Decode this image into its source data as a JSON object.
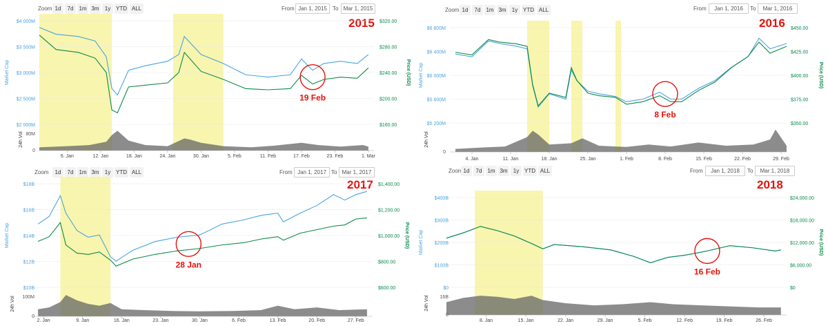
{
  "common": {
    "zoom_label": "Zoom",
    "zoom_buttons": [
      "1d",
      "7d",
      "1m",
      "3m",
      "1y",
      "YTD",
      "ALL"
    ],
    "from_label": "From",
    "to_label": "To",
    "market_cap_axis_title": "Market Cap",
    "price_axis_title": "Price (USD)",
    "volume_axis_title": "24h Vol",
    "colors": {
      "market_cap": "#4aa3df",
      "price": "#0a8a4a",
      "volume": "#666666",
      "highlight": "#f7f3a0",
      "annotation": "#e3120b"
    }
  },
  "chart_data": [
    {
      "type": "line",
      "year_label": "2015",
      "from_date": "Jan 1, 2015",
      "to_date": "Mar 1, 2015",
      "x_range": [
        "2015-01-01",
        "2015-03-02"
      ],
      "x_ticks": [
        "6. Jan",
        "12. Jan",
        "18. Jan",
        "24. Jan",
        "30. Jan",
        "5. Feb",
        "11. Feb",
        "17. Feb",
        "23. Feb",
        "1. Mar"
      ],
      "x_tick_dates": [
        "2015-01-06",
        "2015-01-12",
        "2015-01-18",
        "2015-01-24",
        "2015-01-30",
        "2015-02-05",
        "2015-02-11",
        "2015-02-17",
        "2015-02-23",
        "2015-03-01"
      ],
      "market_cap_ticks": [
        "$4 000M",
        "$3 500M",
        "$3 000M",
        "$2 500M",
        "$2 000M"
      ],
      "market_cap_range": [
        2000,
        4300
      ],
      "price_ticks": [
        "$320.00",
        "$280.00",
        "$240.00",
        "$200.00",
        "$160.00"
      ],
      "price_range": [
        160,
        340
      ],
      "volume_ticks": [
        "80M",
        "0"
      ],
      "volume_range": [
        0,
        100
      ],
      "highlight_ranges": [
        [
          "2015-01-01",
          "2015-01-14"
        ],
        [
          "2015-01-25",
          "2015-02-03"
        ]
      ],
      "annotation": {
        "label": "19 Feb",
        "date": "2015-02-19"
      },
      "series": [
        {
          "name": "Market Cap",
          "x": [
            "2015-01-01",
            "2015-01-04",
            "2015-01-08",
            "2015-01-11",
            "2015-01-13",
            "2015-01-14",
            "2015-01-15",
            "2015-01-17",
            "2015-01-20",
            "2015-01-24",
            "2015-01-26",
            "2015-01-27",
            "2015-01-30",
            "2015-02-03",
            "2015-02-07",
            "2015-02-11",
            "2015-02-15",
            "2015-02-17",
            "2015-02-19",
            "2015-02-21",
            "2015-02-24",
            "2015-02-27",
            "2015-03-01"
          ],
          "values": [
            4150,
            4000,
            3950,
            3850,
            3500,
            2800,
            2650,
            3200,
            3300,
            3400,
            3550,
            3950,
            3550,
            3350,
            3100,
            3050,
            3100,
            3450,
            3200,
            3350,
            3400,
            3350,
            3550
          ]
        },
        {
          "name": "Price",
          "x": [
            "2015-01-01",
            "2015-01-04",
            "2015-01-08",
            "2015-01-11",
            "2015-01-13",
            "2015-01-14",
            "2015-01-15",
            "2015-01-17",
            "2015-01-20",
            "2015-01-24",
            "2015-01-26",
            "2015-01-27",
            "2015-01-30",
            "2015-02-03",
            "2015-02-07",
            "2015-02-11",
            "2015-02-15",
            "2015-02-17",
            "2015-02-19",
            "2015-02-21",
            "2015-02-24",
            "2015-02-27",
            "2015-03-01"
          ],
          "values": [
            315,
            290,
            285,
            275,
            250,
            185,
            180,
            225,
            228,
            232,
            250,
            285,
            252,
            238,
            222,
            220,
            222,
            245,
            230,
            238,
            242,
            240,
            258
          ]
        },
        {
          "name": "24h Vol",
          "x": [
            "2015-01-01",
            "2015-01-06",
            "2015-01-10",
            "2015-01-13",
            "2015-01-14",
            "2015-01-15",
            "2015-01-17",
            "2015-01-20",
            "2015-01-24",
            "2015-01-27",
            "2015-01-28",
            "2015-01-30",
            "2015-02-03",
            "2015-02-08",
            "2015-02-12",
            "2015-02-17",
            "2015-02-20",
            "2015-02-24",
            "2015-02-28",
            "2015-03-01"
          ],
          "values": [
            15,
            20,
            25,
            40,
            70,
            90,
            45,
            25,
            20,
            55,
            50,
            35,
            20,
            15,
            22,
            35,
            25,
            18,
            25,
            18
          ]
        }
      ]
    },
    {
      "type": "line",
      "year_label": "2016",
      "from_date": "Jan 1, 2016",
      "to_date": "Mar 1, 2016",
      "x_range": [
        "2015-12-31",
        "2016-03-01"
      ],
      "x_ticks": [
        "4. Jan",
        "11. Jan",
        "18. Jan",
        "25. Jan",
        "1. Feb",
        "8. Feb",
        "15. Feb",
        "22. Feb",
        "29. Feb"
      ],
      "x_tick_dates": [
        "2016-01-04",
        "2016-01-11",
        "2016-01-18",
        "2016-01-25",
        "2016-02-01",
        "2016-02-08",
        "2016-02-15",
        "2016-02-22",
        "2016-02-29"
      ],
      "market_cap_ticks": [
        "$6 800M",
        "$6 400M",
        "$6 000M",
        "$5 600M",
        "$5 200M"
      ],
      "market_cap_range": [
        5200,
        7000
      ],
      "price_ticks": [
        "$450.00",
        "$425.00",
        "$400.00",
        "$375.00",
        "$350.00"
      ],
      "price_range": [
        350,
        462
      ],
      "volume_ticks": [
        "0"
      ],
      "volume_range": [
        0,
        100
      ],
      "highlight_ranges": [
        [
          "2016-01-14",
          "2016-01-18"
        ],
        [
          "2016-01-22",
          "2016-01-24"
        ],
        [
          "2016-01-30",
          "2016-01-31"
        ]
      ],
      "annotation": {
        "label": "8 Feb",
        "date": "2016-02-08"
      },
      "series": [
        {
          "name": "Market Cap",
          "x": [
            "2016-01-01",
            "2016-01-04",
            "2016-01-07",
            "2016-01-09",
            "2016-01-12",
            "2016-01-14",
            "2016-01-15",
            "2016-01-16",
            "2016-01-18",
            "2016-01-21",
            "2016-01-22",
            "2016-01-23",
            "2016-01-25",
            "2016-01-27",
            "2016-01-30",
            "2016-02-01",
            "2016-02-04",
            "2016-02-07",
            "2016-02-09",
            "2016-02-11",
            "2016-02-14",
            "2016-02-17",
            "2016-02-20",
            "2016-02-23",
            "2016-02-25",
            "2016-02-27",
            "2016-03-01"
          ],
          "values": [
            6500,
            6450,
            6750,
            6700,
            6650,
            6600,
            5900,
            5500,
            5750,
            5650,
            6200,
            6000,
            5800,
            5750,
            5700,
            5600,
            5650,
            5780,
            5650,
            5650,
            5850,
            6000,
            6250,
            6450,
            6800,
            6600,
            6700
          ]
        },
        {
          "name": "Price",
          "x": [
            "2016-01-01",
            "2016-01-04",
            "2016-01-07",
            "2016-01-09",
            "2016-01-12",
            "2016-01-14",
            "2016-01-15",
            "2016-01-16",
            "2016-01-18",
            "2016-01-21",
            "2016-01-22",
            "2016-01-23",
            "2016-01-25",
            "2016-01-27",
            "2016-01-30",
            "2016-02-01",
            "2016-02-04",
            "2016-02-07",
            "2016-02-09",
            "2016-02-11",
            "2016-02-14",
            "2016-02-17",
            "2016-02-20",
            "2016-02-23",
            "2016-02-25",
            "2016-02-27",
            "2016-03-01"
          ],
          "values": [
            433,
            430,
            448,
            445,
            443,
            440,
            395,
            370,
            385,
            380,
            415,
            400,
            385,
            382,
            380,
            372,
            375,
            382,
            375,
            375,
            388,
            398,
            415,
            428,
            445,
            432,
            440
          ]
        },
        {
          "name": "24h Vol",
          "x": [
            "2016-01-01",
            "2016-01-06",
            "2016-01-10",
            "2016-01-14",
            "2016-01-15",
            "2016-01-16",
            "2016-01-18",
            "2016-01-22",
            "2016-01-24",
            "2016-01-27",
            "2016-02-01",
            "2016-02-05",
            "2016-02-09",
            "2016-02-14",
            "2016-02-19",
            "2016-02-24",
            "2016-02-27",
            "2016-02-28",
            "2016-03-01"
          ],
          "values": [
            12,
            18,
            22,
            60,
            85,
            70,
            30,
            35,
            55,
            25,
            20,
            30,
            22,
            38,
            25,
            30,
            50,
            90,
            25
          ]
        }
      ]
    },
    {
      "type": "line",
      "year_label": "2017",
      "from_date": "Jan 1, 2017",
      "to_date": "Mar 1, 2017",
      "x_range": [
        "2016-12-31",
        "2017-03-02"
      ],
      "x_ticks": [
        "2. Jan",
        "9. Jan",
        "16. Jan",
        "23. Jan",
        "30. Jan",
        "6. Feb",
        "13. Feb",
        "20. Feb",
        "27. Feb"
      ],
      "x_tick_dates": [
        "2017-01-02",
        "2017-01-09",
        "2017-01-16",
        "2017-01-23",
        "2017-01-30",
        "2017-02-06",
        "2017-02-13",
        "2017-02-20",
        "2017-02-27"
      ],
      "market_cap_ticks": [
        "$18B",
        "$16B",
        "$14B",
        "$12B",
        "$10B"
      ],
      "market_cap_range": [
        10,
        19.5
      ],
      "price_ticks": [
        "$1,400.00",
        "$1,200.00",
        "$1,000.00",
        "$800.00",
        "$600.00"
      ],
      "price_range": [
        600,
        1480
      ],
      "volume_ticks": [
        "100M",
        "0"
      ],
      "volume_range": [
        0,
        140
      ],
      "highlight_ranges": [
        [
          "2017-01-05",
          "2017-01-14"
        ]
      ],
      "annotation": {
        "label": "28 Jan",
        "date": "2017-01-28"
      },
      "series": [
        {
          "name": "Market Cap",
          "x": [
            "2017-01-01",
            "2017-01-03",
            "2017-01-05",
            "2017-01-06",
            "2017-01-08",
            "2017-01-10",
            "2017-01-12",
            "2017-01-14",
            "2017-01-15",
            "2017-01-18",
            "2017-01-22",
            "2017-01-26",
            "2017-01-30",
            "2017-02-03",
            "2017-02-07",
            "2017-02-10",
            "2017-02-13",
            "2017-02-14",
            "2017-02-17",
            "2017-02-20",
            "2017-02-23",
            "2017-02-25",
            "2017-02-27",
            "2017-03-01"
          ],
          "values": [
            15.8,
            16.5,
            18.4,
            16.8,
            15.2,
            14.6,
            14.8,
            12.8,
            12.4,
            13.4,
            14.2,
            14.6,
            14.8,
            15.8,
            16.2,
            16.6,
            16.8,
            16.0,
            16.8,
            17.5,
            18.5,
            18.0,
            18.5,
            18.8
          ]
        },
        {
          "name": "Price",
          "x": [
            "2017-01-01",
            "2017-01-03",
            "2017-01-05",
            "2017-01-06",
            "2017-01-08",
            "2017-01-10",
            "2017-01-12",
            "2017-01-14",
            "2017-01-15",
            "2017-01-18",
            "2017-01-22",
            "2017-01-26",
            "2017-01-30",
            "2017-02-03",
            "2017-02-07",
            "2017-02-10",
            "2017-02-13",
            "2017-02-14",
            "2017-02-17",
            "2017-02-20",
            "2017-02-23",
            "2017-02-25",
            "2017-02-27",
            "2017-03-01"
          ],
          "values": [
            990,
            1030,
            1150,
            960,
            890,
            880,
            900,
            830,
            780,
            840,
            880,
            910,
            930,
            960,
            980,
            1010,
            1030,
            1000,
            1060,
            1090,
            1120,
            1130,
            1180,
            1190
          ]
        },
        {
          "name": "24h Vol",
          "x": [
            "2017-01-01",
            "2017-01-03",
            "2017-01-05",
            "2017-01-06",
            "2017-01-08",
            "2017-01-10",
            "2017-01-12",
            "2017-01-14",
            "2017-01-16",
            "2017-01-20",
            "2017-01-25",
            "2017-01-30",
            "2017-02-05",
            "2017-02-10",
            "2017-02-13",
            "2017-02-16",
            "2017-02-20",
            "2017-02-24",
            "2017-03-01"
          ],
          "values": [
            40,
            50,
            80,
            120,
            90,
            70,
            60,
            75,
            40,
            35,
            30,
            28,
            30,
            35,
            60,
            40,
            50,
            35,
            40
          ]
        }
      ]
    },
    {
      "type": "line",
      "year_label": "2018",
      "from_date": "Jan 1, 2018",
      "to_date": "Mar 1, 2018",
      "x_range": [
        "2018-01-01",
        "2018-03-02"
      ],
      "x_ticks": [
        "8. Jan",
        "15. Jan",
        "22. Jan",
        "29. Jan",
        "5. Feb",
        "12. Feb",
        "19. Feb",
        "26. Feb"
      ],
      "x_tick_dates": [
        "2018-01-08",
        "2018-01-15",
        "2018-01-22",
        "2018-01-29",
        "2018-02-05",
        "2018-02-12",
        "2018-02-19",
        "2018-02-26"
      ],
      "market_cap_ticks": [
        "$400B",
        "$300B",
        "$200B",
        "$100B",
        "$0"
      ],
      "market_cap_range": [
        0,
        420
      ],
      "price_ticks": [
        "$24,000.00",
        "$18,000.00",
        "$12,000.00",
        "$6,000.00",
        "$0"
      ],
      "price_range": [
        0,
        25200
      ],
      "volume_ticks": [
        "16B",
        "0"
      ],
      "volume_range": [
        0,
        22
      ],
      "highlight_ranges": [
        [
          "2018-01-06",
          "2018-01-18"
        ]
      ],
      "annotation": {
        "label": "16 Feb",
        "date": "2018-02-16"
      },
      "series": [
        {
          "name": "Market Cap",
          "x": [
            "2018-01-01",
            "2018-01-04",
            "2018-01-07",
            "2018-01-10",
            "2018-01-13",
            "2018-01-16",
            "2018-01-18",
            "2018-01-20",
            "2018-01-25",
            "2018-01-30",
            "2018-02-03",
            "2018-02-06",
            "2018-02-09",
            "2018-02-12",
            "2018-02-16",
            "2018-02-20",
            "2018-02-24",
            "2018-02-28",
            "2018-03-01"
          ],
          "values": [
            230,
            255,
            285,
            265,
            240,
            205,
            180,
            200,
            190,
            175,
            145,
            115,
            140,
            150,
            170,
            195,
            185,
            170,
            175
          ]
        },
        {
          "name": "Price",
          "x": [
            "2018-01-01",
            "2018-01-04",
            "2018-01-07",
            "2018-01-10",
            "2018-01-13",
            "2018-01-16",
            "2018-01-18",
            "2018-01-20",
            "2018-01-25",
            "2018-01-30",
            "2018-02-03",
            "2018-02-06",
            "2018-02-09",
            "2018-02-12",
            "2018-02-16",
            "2018-02-20",
            "2018-02-24",
            "2018-02-28",
            "2018-03-01"
          ],
          "values": [
            13800,
            15300,
            17100,
            15900,
            14400,
            12300,
            10800,
            12000,
            11400,
            10500,
            8700,
            6900,
            8400,
            9000,
            10200,
            11700,
            11100,
            10200,
            10500
          ]
        },
        {
          "name": "24h Vol",
          "x": [
            "2018-01-01",
            "2018-01-04",
            "2018-01-07",
            "2018-01-10",
            "2018-01-13",
            "2018-01-16",
            "2018-01-18",
            "2018-01-22",
            "2018-01-27",
            "2018-02-01",
            "2018-02-06",
            "2018-02-10",
            "2018-02-15",
            "2018-02-20",
            "2018-02-25",
            "2018-03-01"
          ],
          "values": [
            12,
            16,
            18,
            17,
            15,
            18,
            14,
            11,
            9,
            10,
            12,
            10,
            9,
            8,
            7,
            7
          ]
        }
      ]
    }
  ]
}
